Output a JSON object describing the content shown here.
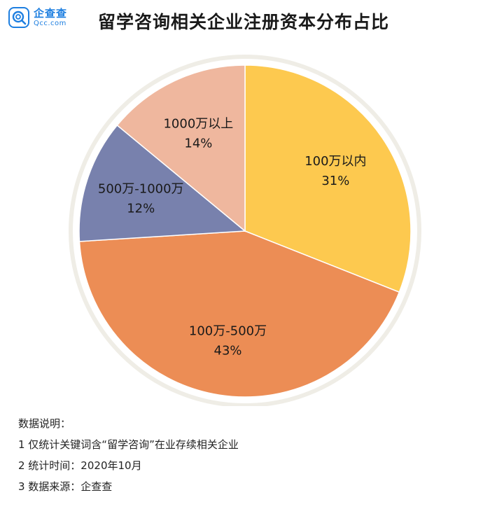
{
  "brand": {
    "name": "企查查",
    "domain": "Qcc.com",
    "color": "#1e7fe0"
  },
  "title": "留学咨询相关企业注册资本分布占比",
  "chart_data": {
    "type": "pie",
    "title": "留学咨询相关企业注册资本分布占比",
    "start_angle_deg": 0,
    "direction": "clockwise",
    "slices": [
      {
        "label": "100万以内",
        "value": 31,
        "value_label": "31%",
        "color": "#fdc94f"
      },
      {
        "label": "100万-500万",
        "value": 43,
        "value_label": "43%",
        "color": "#ec8d55"
      },
      {
        "label": "500万-1000万",
        "value": 12,
        "value_label": "12%",
        "color": "#7881ad"
      },
      {
        "label": "1000万以上",
        "value": 14,
        "value_label": "14%",
        "color": "#efb79e"
      }
    ],
    "legend": "none"
  },
  "notes": {
    "heading": "数据说明：",
    "lines": [
      "1 仅统计关键词含“留学咨询”在业存续相关企业",
      "2 统计时间：2020年10月",
      "3 数据来源：企查查"
    ]
  }
}
